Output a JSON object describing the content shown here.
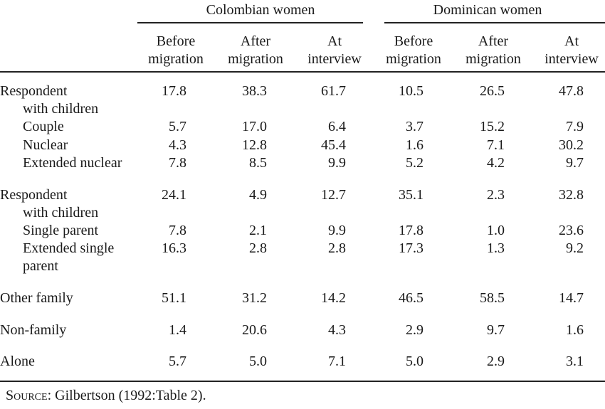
{
  "table": {
    "groups": [
      "Colombian women",
      "Dominican women"
    ],
    "columns": [
      [
        "Before",
        "migration"
      ],
      [
        "After",
        "migration"
      ],
      [
        "At",
        "interview"
      ],
      [
        "Before",
        "migration"
      ],
      [
        "After",
        "migration"
      ],
      [
        "At",
        "interview"
      ]
    ],
    "rows": [
      {
        "label": [
          "Respondent",
          "with children"
        ],
        "values": [
          "17.8",
          "38.3",
          "61.7",
          "10.5",
          "26.5",
          "47.8"
        ],
        "rows": [
          {
            "label": [
              "Couple"
            ],
            "values": [
              "5.7",
              "17.0",
              "6.4",
              "3.7",
              "15.2",
              "7.9"
            ]
          },
          {
            "label": [
              "Nuclear"
            ],
            "values": [
              "4.3",
              "12.8",
              "45.4",
              "1.6",
              "7.1",
              "30.2"
            ]
          },
          {
            "label": [
              "Extended nuclear"
            ],
            "values": [
              "7.8",
              "8.5",
              "9.9",
              "5.2",
              "4.2",
              "9.7"
            ]
          }
        ]
      },
      {
        "label": [
          "Respondent",
          "with children"
        ],
        "values": [
          "24.1",
          "4.9",
          "12.7",
          "35.1",
          "2.3",
          "32.8"
        ],
        "rows": [
          {
            "label": [
              "Single parent"
            ],
            "values": [
              "7.8",
              "2.1",
              "9.9",
              "17.8",
              "1.0",
              "23.6"
            ]
          },
          {
            "label": [
              "Extended single",
              "parent"
            ],
            "values": [
              "16.3",
              "2.8",
              "2.8",
              "17.3",
              "1.3",
              "9.2"
            ]
          }
        ]
      },
      {
        "label": [
          "Other family"
        ],
        "values": [
          "51.1",
          "31.2",
          "14.2",
          "46.5",
          "58.5",
          "14.7"
        ],
        "rows": []
      },
      {
        "label": [
          "Non-family"
        ],
        "values": [
          "1.4",
          "20.6",
          "4.3",
          "2.9",
          "9.7",
          "1.6"
        ],
        "rows": []
      },
      {
        "label": [
          "Alone"
        ],
        "values": [
          "5.7",
          "5.0",
          "7.1",
          "5.0",
          "2.9",
          "3.1"
        ],
        "rows": []
      }
    ]
  },
  "footer": {
    "source_label": "Source:",
    "source_text": "Gilbertson (1992:Table 2)."
  }
}
